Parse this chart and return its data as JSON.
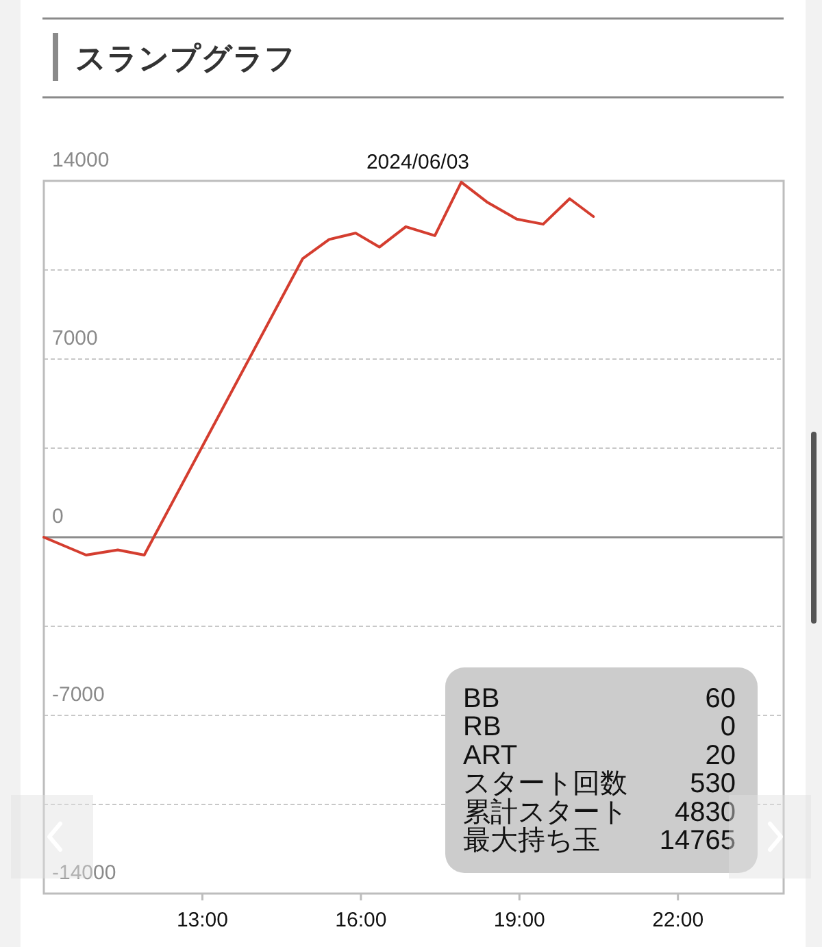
{
  "chart_data": [
    {
      "type": "line",
      "title": "スランプグラフ",
      "subtitle": "2024/06/03",
      "x": [
        10,
        10.8,
        11.4,
        11.9,
        14.9,
        15.4,
        15.9,
        16.35,
        16.85,
        17.4,
        17.9,
        18.4,
        18.95,
        19.45,
        19.95,
        20.4
      ],
      "series": [
        {
          "color": "#d43d2f",
          "values": [
            0,
            -700,
            -500,
            -700,
            10950,
            11700,
            11950,
            11400,
            12200,
            11850,
            13950,
            13150,
            12500,
            12300,
            13300,
            12600
          ]
        }
      ],
      "xlim": [
        10,
        24
      ],
      "xticks": [
        {
          "value": 13,
          "label": "13:00"
        },
        {
          "value": 16,
          "label": "16:00"
        },
        {
          "value": 19,
          "label": "19:00"
        },
        {
          "value": 22,
          "label": "22:00"
        }
      ],
      "ylim": [
        -14000,
        14000
      ],
      "yticks": [
        -14000,
        {
          "value": -10500,
          "label": null
        },
        -7000,
        {
          "value": -3500,
          "label": null
        },
        0,
        {
          "value": 3500,
          "label": null
        },
        7000,
        {
          "value": 10500,
          "label": null
        },
        14000
      ],
      "grid": "y",
      "ref_lines": [
        {
          "axis": "y",
          "value": 0,
          "color": "#8c8c8c"
        }
      ]
    },
    {
      "type": "other",
      "categories": [
        "BB",
        "RB",
        "ART",
        "スタート回数",
        "累計スタート",
        "最大持ち玉"
      ],
      "values": [
        60,
        0,
        20,
        530,
        4830,
        14765
      ],
      "data_labels": true
    }
  ]
}
